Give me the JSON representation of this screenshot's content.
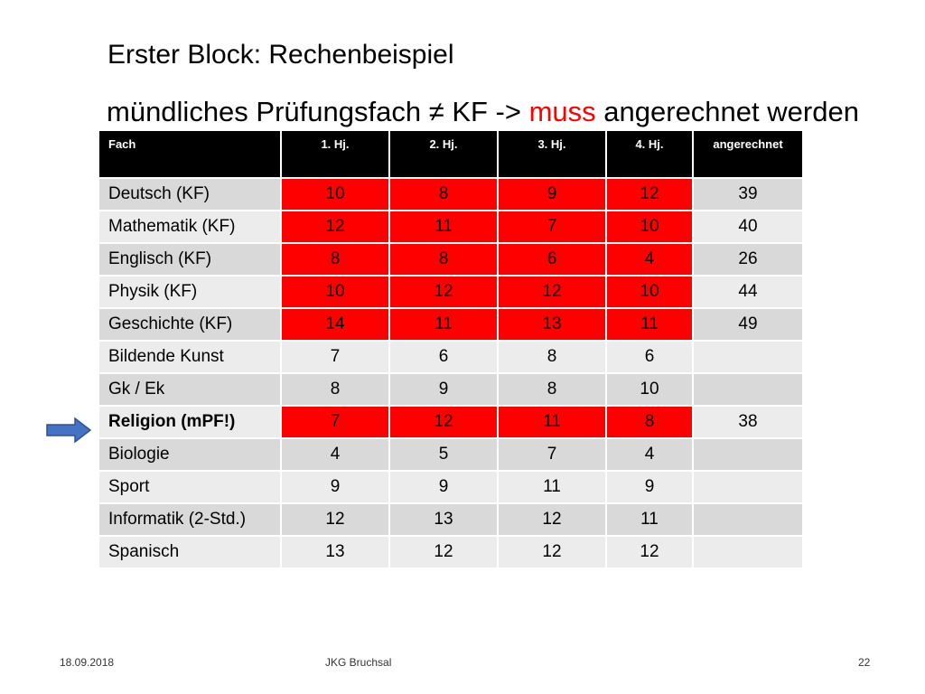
{
  "slide": {
    "title": "Erster Block: Rechenbeispiel",
    "subtitle_pre": "mündliches Prüfungsfach ≠ KF -> ",
    "subtitle_highlight": "muss",
    "subtitle_post": " angerechnet werden",
    "highlight_color": "#ff0000"
  },
  "table": {
    "headers": [
      "Fach",
      "1. Hj.",
      "2. Hj.",
      "3. Hj.",
      "4. Hj.",
      "angerechnet"
    ],
    "rows": [
      {
        "subject": "Deutsch (KF)",
        "grades": [
          "10",
          "8",
          "9",
          "12"
        ],
        "total": "39",
        "counted": true,
        "bold": false
      },
      {
        "subject": "Mathematik  (KF)",
        "grades": [
          "12",
          "11",
          "7",
          "10"
        ],
        "total": "40",
        "counted": true,
        "bold": false
      },
      {
        "subject": "Englisch (KF)",
        "grades": [
          "8",
          "8",
          "6",
          "4"
        ],
        "total": "26",
        "counted": true,
        "bold": false
      },
      {
        "subject": "Physik (KF)",
        "grades": [
          "10",
          "12",
          "12",
          "10"
        ],
        "total": "44",
        "counted": true,
        "bold": false
      },
      {
        "subject": "Geschichte  (KF)",
        "grades": [
          "14",
          "11",
          "13",
          "11"
        ],
        "total": "49",
        "counted": true,
        "bold": false
      },
      {
        "subject": "Bildende Kunst",
        "grades": [
          "7",
          "6",
          "8",
          "6"
        ],
        "total": "",
        "counted": false,
        "bold": false
      },
      {
        "subject": "Gk / Ek",
        "grades": [
          "8",
          "9",
          "8",
          "10"
        ],
        "total": "",
        "counted": false,
        "bold": false
      },
      {
        "subject": "Religion (mPF!)",
        "grades": [
          "7",
          "12",
          "11",
          "8"
        ],
        "total": "38",
        "counted": true,
        "bold": true
      },
      {
        "subject": "Biologie",
        "grades": [
          "4",
          "5",
          "7",
          "4"
        ],
        "total": "",
        "counted": false,
        "bold": false
      },
      {
        "subject": "Sport",
        "grades": [
          "9",
          "9",
          "11",
          "9"
        ],
        "total": "",
        "counted": false,
        "bold": false
      },
      {
        "subject": "Informatik (2-Std.)",
        "grades": [
          "12",
          "13",
          "12",
          "11"
        ],
        "total": "",
        "counted": false,
        "bold": false
      },
      {
        "subject": "Spanisch",
        "grades": [
          "13",
          "12",
          "12",
          "12"
        ],
        "total": "",
        "counted": false,
        "bold": false
      }
    ],
    "counted_color": "#ff0000",
    "row_color_a": "#d9d9d9",
    "row_color_b": "#ececec",
    "header_color": "#000000"
  },
  "marker": {
    "icon": "right-arrow-icon",
    "color": "#4472c4",
    "points_to": "Religion (mPF!)"
  },
  "footer": {
    "date": "18.09.2018",
    "org": "JKG Bruchsal",
    "page": "22"
  }
}
